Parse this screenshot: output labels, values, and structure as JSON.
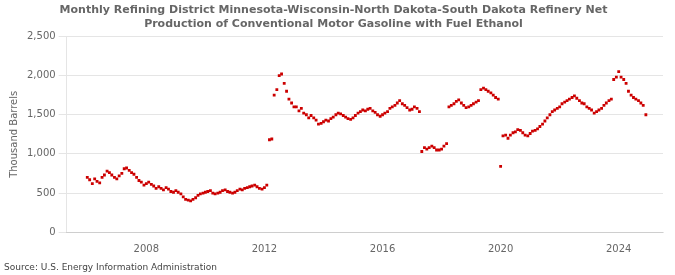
{
  "chart_data": {
    "type": "scatter",
    "title": "Monthly Refining District Minnesota-Wisconsin-North Dakota-South Dakota Refinery Net\nProduction of Conventional Motor Gasoline with Fuel Ethanol",
    "ylabel": "Thousand Barrels",
    "source": "Source: U.S. Energy Information Administration",
    "xlim": [
      2005.3,
      2025.5
    ],
    "xticks": [
      2008,
      2012,
      2016,
      2020,
      2024
    ],
    "ylim": [
      0,
      2500
    ],
    "yticks": [
      0,
      500,
      {
        "value": 1000,
        "label": "1,000"
      },
      {
        "value": 1500,
        "label": "1,500"
      },
      {
        "value": 2000,
        "label": "2,000"
      },
      {
        "value": 2500,
        "label": "2,500"
      }
    ],
    "grid": "y",
    "color": "#cc0000",
    "marker": "square",
    "x": [
      2006,
      2006.08,
      2006.17,
      2006.25,
      2006.33,
      2006.42,
      2006.5,
      2006.58,
      2006.67,
      2006.75,
      2006.83,
      2006.92,
      2007,
      2007.08,
      2007.17,
      2007.25,
      2007.33,
      2007.42,
      2007.5,
      2007.58,
      2007.67,
      2007.75,
      2007.83,
      2007.92,
      2008,
      2008.08,
      2008.17,
      2008.25,
      2008.33,
      2008.42,
      2008.5,
      2008.58,
      2008.67,
      2008.75,
      2008.83,
      2008.92,
      2009,
      2009.08,
      2009.17,
      2009.25,
      2009.33,
      2009.42,
      2009.5,
      2009.58,
      2009.67,
      2009.75,
      2009.83,
      2009.92,
      2010,
      2010.08,
      2010.17,
      2010.25,
      2010.33,
      2010.42,
      2010.5,
      2010.58,
      2010.67,
      2010.75,
      2010.83,
      2010.92,
      2011,
      2011.08,
      2011.17,
      2011.25,
      2011.33,
      2011.42,
      2011.5,
      2011.58,
      2011.67,
      2011.75,
      2011.83,
      2011.92,
      2012,
      2012.08,
      2012.17,
      2012.25,
      2012.33,
      2012.42,
      2012.5,
      2012.58,
      2012.67,
      2012.75,
      2012.83,
      2012.92,
      2013,
      2013.08,
      2013.17,
      2013.25,
      2013.33,
      2013.42,
      2013.5,
      2013.58,
      2013.67,
      2013.75,
      2013.83,
      2013.92,
      2014,
      2014.08,
      2014.17,
      2014.25,
      2014.33,
      2014.42,
      2014.5,
      2014.58,
      2014.67,
      2014.75,
      2014.83,
      2014.92,
      2015,
      2015.08,
      2015.17,
      2015.25,
      2015.33,
      2015.42,
      2015.5,
      2015.58,
      2015.67,
      2015.75,
      2015.83,
      2015.92,
      2016,
      2016.08,
      2016.17,
      2016.25,
      2016.33,
      2016.42,
      2016.5,
      2016.58,
      2016.67,
      2016.75,
      2016.83,
      2016.92,
      2017,
      2017.08,
      2017.17,
      2017.25,
      2017.33,
      2017.42,
      2017.5,
      2017.58,
      2017.67,
      2017.75,
      2017.83,
      2017.92,
      2018,
      2018.08,
      2018.17,
      2018.25,
      2018.33,
      2018.42,
      2018.5,
      2018.58,
      2018.67,
      2018.75,
      2018.83,
      2018.92,
      2019,
      2019.08,
      2019.17,
      2019.25,
      2019.33,
      2019.42,
      2019.5,
      2019.58,
      2019.67,
      2019.75,
      2019.83,
      2019.92,
      2020,
      2020.08,
      2020.17,
      2020.25,
      2020.33,
      2020.42,
      2020.5,
      2020.58,
      2020.67,
      2020.75,
      2020.83,
      2020.92,
      2021,
      2021.08,
      2021.17,
      2021.25,
      2021.33,
      2021.42,
      2021.5,
      2021.58,
      2021.67,
      2021.75,
      2021.83,
      2021.92,
      2022,
      2022.08,
      2022.17,
      2022.25,
      2022.33,
      2022.42,
      2022.5,
      2022.58,
      2022.67,
      2022.75,
      2022.83,
      2022.92,
      2023,
      2023.08,
      2023.17,
      2023.25,
      2023.33,
      2023.42,
      2023.5,
      2023.58,
      2023.67,
      2023.75,
      2023.83,
      2023.92,
      2024,
      2024.08,
      2024.17,
      2024.25,
      2024.33,
      2024.42,
      2024.5,
      2024.58,
      2024.67,
      2024.75,
      2024.83,
      2024.92
    ],
    "values": [
      700,
      670,
      620,
      680,
      650,
      630,
      700,
      730,
      780,
      760,
      730,
      700,
      680,
      720,
      750,
      810,
      820,
      790,
      760,
      740,
      700,
      660,
      640,
      600,
      620,
      640,
      610,
      590,
      560,
      580,
      560,
      540,
      570,
      550,
      520,
      510,
      530,
      510,
      490,
      450,
      420,
      410,
      400,
      420,
      440,
      470,
      490,
      500,
      510,
      520,
      530,
      500,
      490,
      500,
      510,
      530,
      540,
      520,
      510,
      500,
      510,
      530,
      550,
      540,
      560,
      570,
      580,
      590,
      600,
      580,
      560,
      550,
      570,
      600,
      1180,
      1190,
      1750,
      1820,
      2000,
      2020,
      1900,
      1800,
      1700,
      1650,
      1600,
      1600,
      1550,
      1580,
      1520,
      1500,
      1460,
      1490,
      1460,
      1430,
      1380,
      1390,
      1410,
      1430,
      1420,
      1450,
      1470,
      1500,
      1520,
      1510,
      1490,
      1470,
      1450,
      1440,
      1460,
      1490,
      1520,
      1540,
      1560,
      1550,
      1570,
      1580,
      1550,
      1530,
      1500,
      1480,
      1500,
      1520,
      1540,
      1580,
      1600,
      1620,
      1650,
      1680,
      1640,
      1620,
      1590,
      1560,
      1570,
      1600,
      1580,
      1540,
      1030,
      1080,
      1060,
      1080,
      1100,
      1080,
      1050,
      1050,
      1060,
      1100,
      1130,
      1600,
      1620,
      1640,
      1670,
      1690,
      1650,
      1620,
      1590,
      1600,
      1620,
      1640,
      1660,
      1680,
      1820,
      1840,
      1820,
      1800,
      1780,
      1750,
      1720,
      1700,
      840,
      1230,
      1240,
      1200,
      1240,
      1270,
      1280,
      1310,
      1300,
      1270,
      1240,
      1230,
      1260,
      1290,
      1300,
      1320,
      1350,
      1380,
      1420,
      1460,
      1500,
      1540,
      1560,
      1580,
      1600,
      1640,
      1660,
      1680,
      1700,
      1720,
      1740,
      1710,
      1680,
      1650,
      1640,
      1600,
      1580,
      1560,
      1520,
      1540,
      1560,
      1580,
      1620,
      1650,
      1680,
      1700,
      1950,
      1980,
      2050,
      1980,
      1950,
      1900,
      1800,
      1750,
      1720,
      1700,
      1680,
      1650,
      1620,
      1500
    ]
  }
}
